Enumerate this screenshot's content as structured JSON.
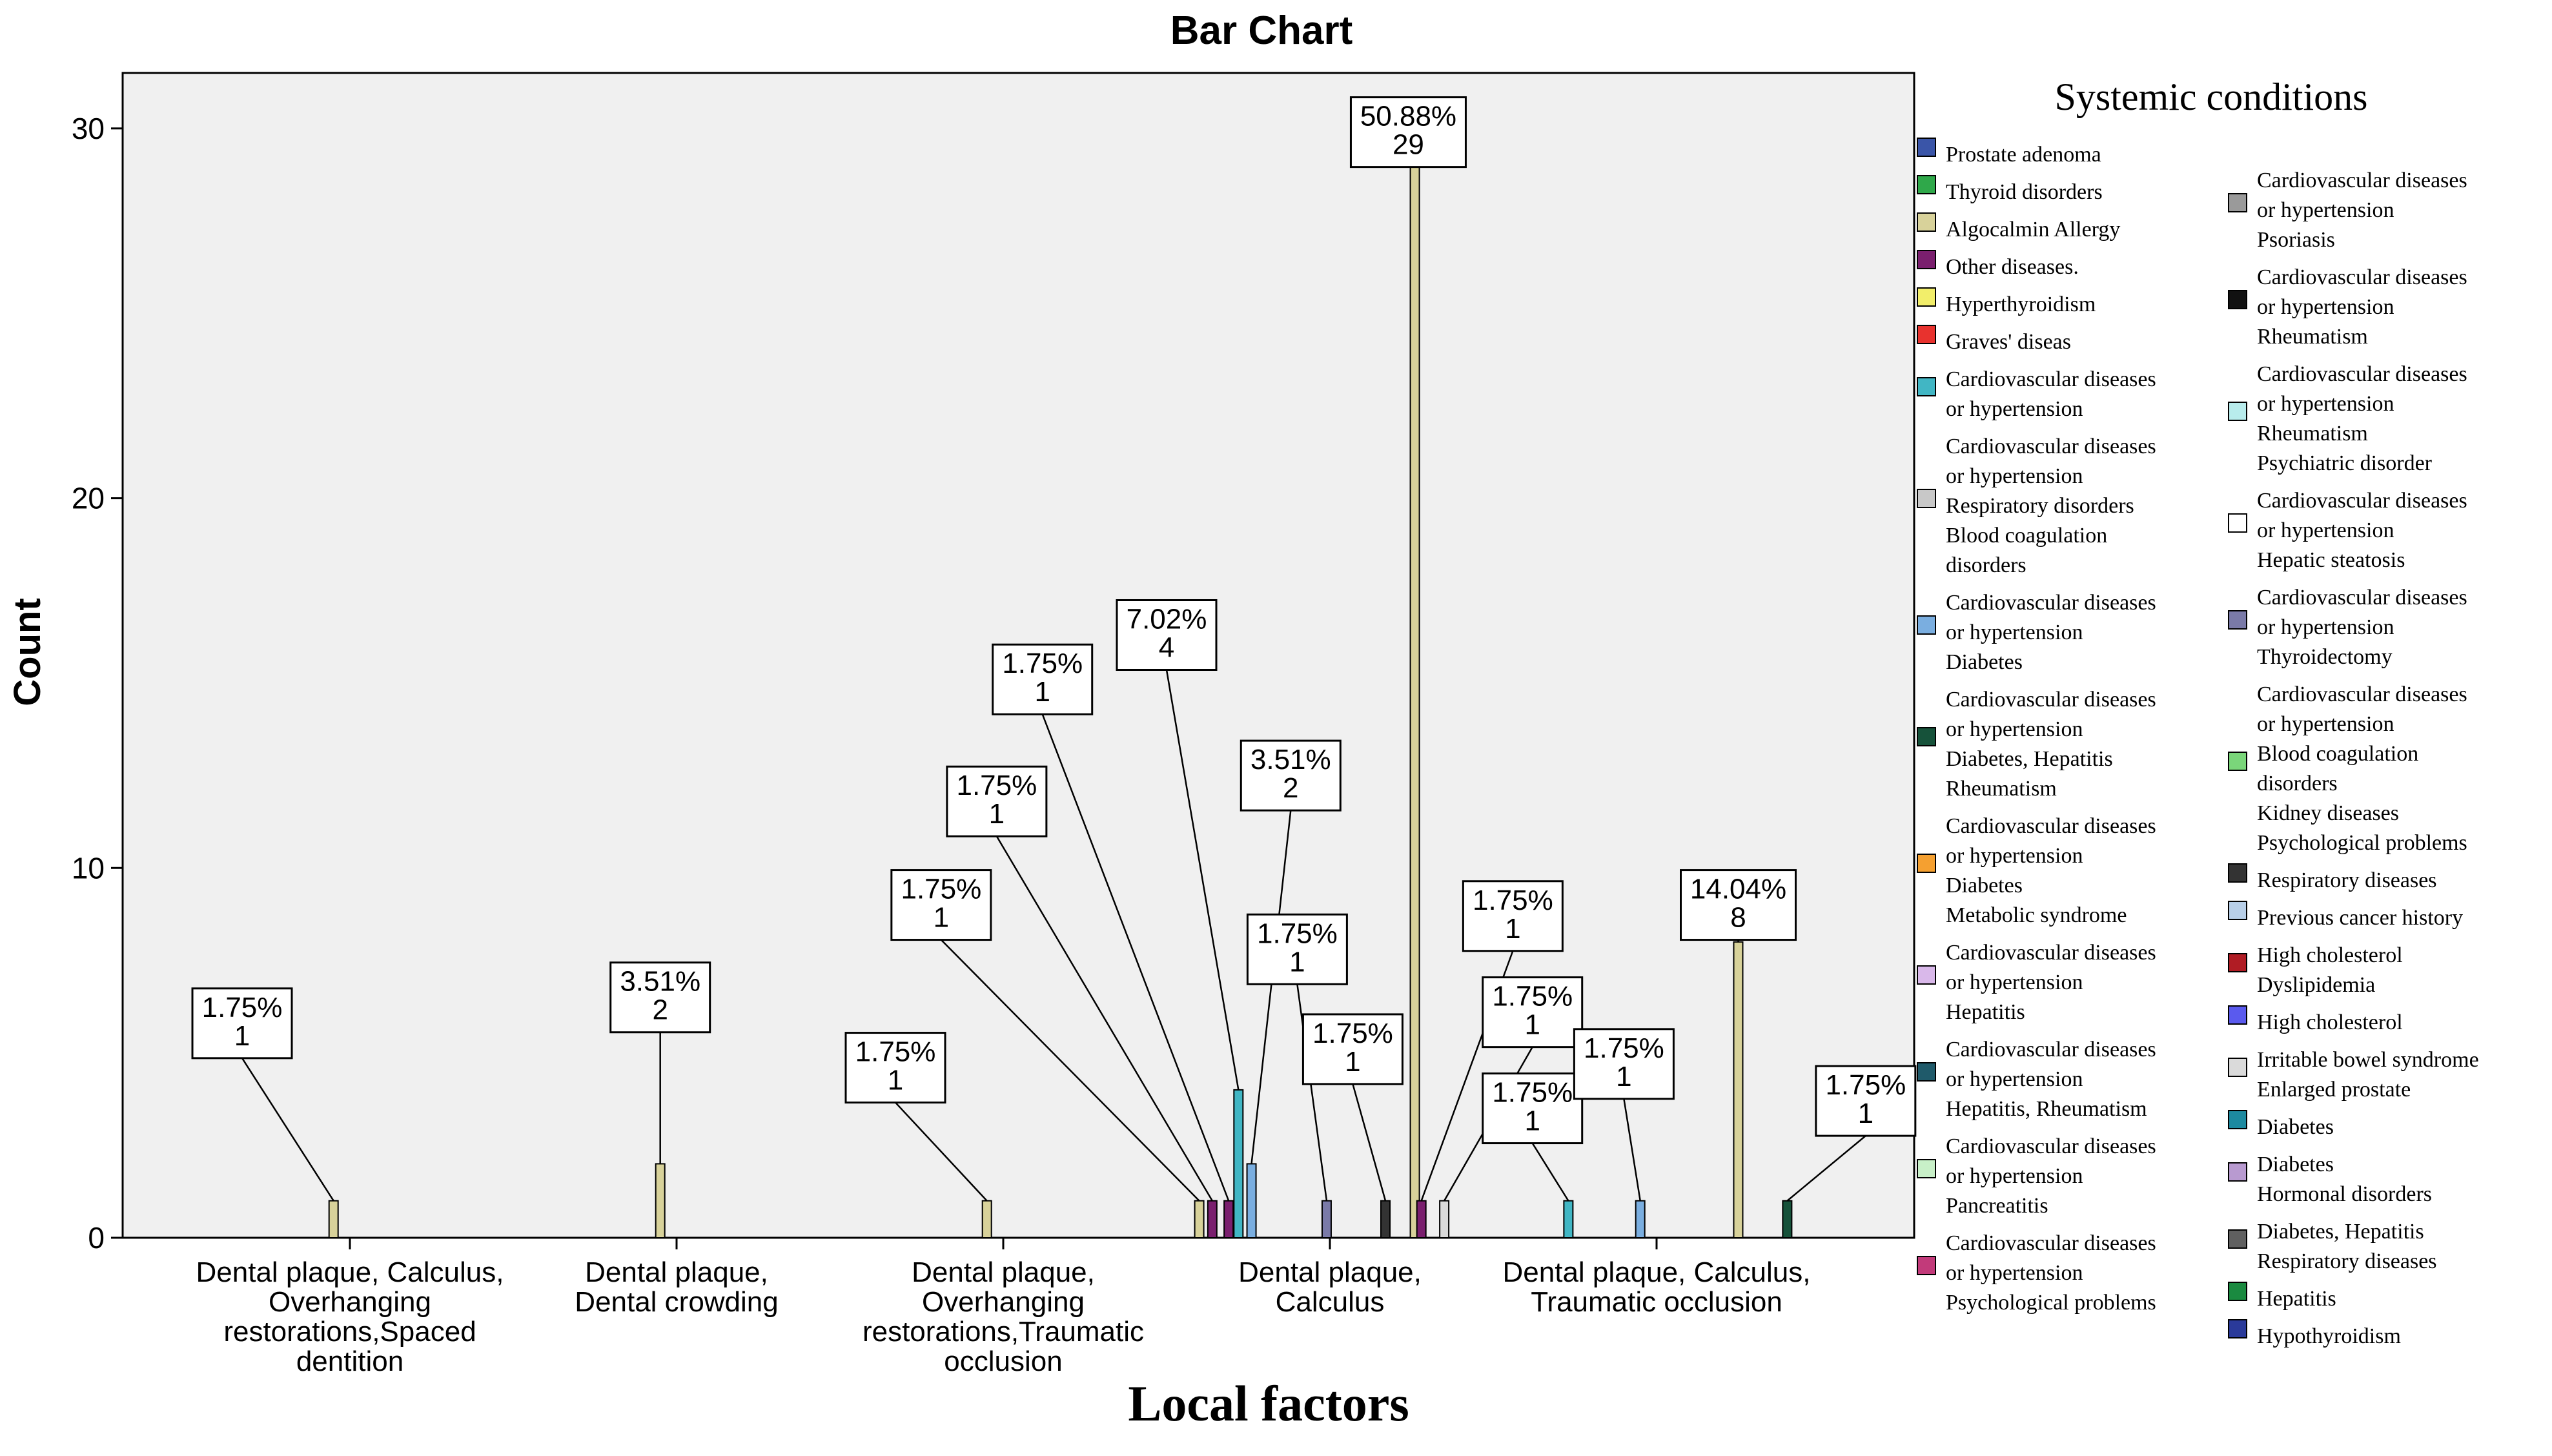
{
  "chart_data": {
    "type": "bar",
    "title": "Bar Chart",
    "xlabel": "Local factors",
    "ylabel": "Count",
    "ylim": [
      0,
      31.5
    ],
    "yticks": [
      0,
      10,
      20,
      30
    ],
    "legend_title": "Systemic conditions",
    "legend_position": "right",
    "categories": [
      {
        "label": [
          "Dental plaque, Calculus,",
          "Overhanging",
          "restorations,Spaced",
          "dentition"
        ]
      },
      {
        "label": [
          "Dental plaque,",
          "Dental crowding"
        ]
      },
      {
        "label": [
          "Dental plaque,",
          "Overhanging",
          "restorations,Traumatic",
          "occlusion"
        ]
      },
      {
        "label": [
          "Dental plaque,",
          "Calculus"
        ]
      },
      {
        "label": [
          "Dental plaque, Calculus,",
          "Traumatic occlusion"
        ]
      }
    ],
    "legend": [
      {
        "label": [
          "Prostate adenoma"
        ],
        "color": "#3a55a8"
      },
      {
        "label": [
          "Thyroid disorders"
        ],
        "color": "#2fa84a"
      },
      {
        "label": [
          "Algocalmin Allergy"
        ],
        "color": "#d8d29a"
      },
      {
        "label": [
          "Other diseases."
        ],
        "color": "#7a1f6e"
      },
      {
        "label": [
          "Hyperthyroidism"
        ],
        "color": "#f2ee6a"
      },
      {
        "label": [
          "Graves' diseas"
        ],
        "color": "#e8322e"
      },
      {
        "label": [
          "Cardiovascular diseases",
          "or hypertension"
        ],
        "color": "#41b6c4"
      },
      {
        "label": [
          "Cardiovascular diseases",
          "or hypertension",
          "Respiratory disorders",
          "Blood coagulation",
          "disorders"
        ],
        "color": "#c8c8c8"
      },
      {
        "label": [
          "Cardiovascular diseases",
          "or hypertension",
          "Diabetes"
        ],
        "color": "#7aaee0"
      },
      {
        "label": [
          "Cardiovascular diseases",
          "or hypertension",
          "Diabetes, Hepatitis",
          "Rheumatism"
        ],
        "color": "#16523a"
      },
      {
        "label": [
          "Cardiovascular diseases",
          "or hypertension",
          "Diabetes",
          "Metabolic syndrome"
        ],
        "color": "#f5a030"
      },
      {
        "label": [
          "Cardiovascular diseases",
          "or hypertension",
          "Hepatitis"
        ],
        "color": "#d9b8ea"
      },
      {
        "label": [
          "Cardiovascular diseases",
          "or hypertension",
          "Hepatitis, Rheumatism"
        ],
        "color": "#1f5a6a"
      },
      {
        "label": [
          "Cardiovascular diseases",
          "or hypertension",
          "Pancreatitis"
        ],
        "color": "#c8f0c8"
      },
      {
        "label": [
          "Cardiovascular diseases",
          "or hypertension",
          "Psychological problems"
        ],
        "color": "#c23a7a"
      },
      {
        "label": [
          "Cardiovascular diseases",
          "or hypertension",
          "Psoriasis"
        ],
        "color": "#9a9a9a"
      },
      {
        "label": [
          "Cardiovascular diseases",
          "or hypertension",
          "Rheumatism"
        ],
        "color": "#111111"
      },
      {
        "label": [
          "Cardiovascular diseases",
          "or hypertension",
          "Rheumatism",
          "Psychiatric disorder"
        ],
        "color": "#b8ecec"
      },
      {
        "label": [
          "Cardiovascular diseases",
          "or hypertension",
          "Hepatic steatosis"
        ],
        "color": "#ffffff"
      },
      {
        "label": [
          "Cardiovascular diseases",
          "or hypertension",
          "Thyroidectomy"
        ],
        "color": "#7a7aa8"
      },
      {
        "label": [
          "Cardiovascular diseases",
          "or hypertension",
          "Blood coagulation",
          "disorders",
          "Kidney diseases",
          "Psychological problems"
        ],
        "color": "#7ad67a"
      },
      {
        "label": [
          "Respiratory diseases"
        ],
        "color": "#333333"
      },
      {
        "label": [
          "Previous cancer history"
        ],
        "color": "#b8cfe8"
      },
      {
        "label": [
          "High cholesterol",
          "Dyslipidemia"
        ],
        "color": "#b01c24"
      },
      {
        "label": [
          "High cholesterol"
        ],
        "color": "#5a5aee"
      },
      {
        "label": [
          "Irritable bowel syndrome",
          "Enlarged prostate"
        ],
        "color": "#dadada"
      },
      {
        "label": [
          "Diabetes"
        ],
        "color": "#1d8aa0"
      },
      {
        "label": [
          "Diabetes",
          "Hormonal disorders"
        ],
        "color": "#b89ad0"
      },
      {
        "label": [
          "Diabetes, Hepatitis",
          "Respiratory diseases"
        ],
        "color": "#606060"
      },
      {
        "label": [
          "Hepatitis"
        ],
        "color": "#1a8a40"
      },
      {
        "label": [
          "Hypothyroidism"
        ],
        "color": "#2a3a9a"
      }
    ],
    "bars": [
      {
        "category": 0,
        "series": 2,
        "x": 0.95,
        "value": 1,
        "pct": "1.75%"
      },
      {
        "category": 1,
        "series": 2,
        "x": 1.95,
        "value": 2,
        "pct": "3.51%"
      },
      {
        "category": 2,
        "series": 2,
        "x": 2.95,
        "value": 1,
        "pct": "1.75%"
      },
      {
        "category": 3,
        "series": 2,
        "x": 3.6,
        "value": 1,
        "pct": "1.75%"
      },
      {
        "category": 3,
        "series": 3,
        "x": 3.64,
        "value": 1,
        "pct": "1.75%"
      },
      {
        "category": 3,
        "series": 3,
        "x": 3.69,
        "value": 1,
        "pct": "1.75%"
      },
      {
        "category": 3,
        "series": 6,
        "x": 3.72,
        "value": 4,
        "pct": "7.02%"
      },
      {
        "category": 3,
        "series": 8,
        "x": 3.76,
        "value": 2,
        "pct": "3.51%"
      },
      {
        "category": 3,
        "series": 19,
        "x": 3.99,
        "value": 1,
        "pct": "1.75%"
      },
      {
        "category": 3,
        "series": 21,
        "x": 4.17,
        "value": 1,
        "pct": "1.75%"
      },
      {
        "category": 3,
        "series": 2,
        "x": 4.26,
        "value": 29,
        "pct": "50.88%"
      },
      {
        "category": 3,
        "series": 3,
        "x": 4.28,
        "value": 1,
        "pct": "1.75%"
      },
      {
        "category": 3,
        "series": 25,
        "x": 4.35,
        "value": 1,
        "pct": "1.75%"
      },
      {
        "category": 4,
        "series": 6,
        "x": 4.73,
        "value": 1,
        "pct": "1.75%"
      },
      {
        "category": 4,
        "series": 8,
        "x": 4.95,
        "value": 1,
        "pct": "1.75%"
      },
      {
        "category": 4,
        "series": 2,
        "x": 5.25,
        "value": 8,
        "pct": "14.04%"
      },
      {
        "category": 4,
        "series": 9,
        "x": 5.4,
        "value": 1,
        "pct": "1.75%"
      }
    ],
    "annotations": [
      {
        "bar": 0,
        "text": [
          "1.75%",
          "1"
        ],
        "at": [
          0.67,
          5.8
        ]
      },
      {
        "bar": 1,
        "text": [
          "3.51%",
          "2"
        ],
        "at": [
          1.95,
          6.5
        ]
      },
      {
        "bar": 2,
        "text": [
          "1.75%",
          "1"
        ],
        "at": [
          2.67,
          4.6
        ]
      },
      {
        "bar": 3,
        "text": [
          "1.75%",
          "1"
        ],
        "at": [
          2.81,
          9.0
        ]
      },
      {
        "bar": 4,
        "text": [
          "1.75%",
          "1"
        ],
        "at": [
          2.98,
          11.8
        ]
      },
      {
        "bar": 5,
        "text": [
          "1.75%",
          "1"
        ],
        "at": [
          3.12,
          15.1
        ]
      },
      {
        "bar": 6,
        "text": [
          "7.02%",
          "4"
        ],
        "at": [
          3.5,
          16.3
        ]
      },
      {
        "bar": 7,
        "text": [
          "3.51%",
          "2"
        ],
        "at": [
          3.88,
          12.5
        ]
      },
      {
        "bar": 8,
        "text": [
          "1.75%",
          "1"
        ],
        "at": [
          3.9,
          7.8
        ]
      },
      {
        "bar": 9,
        "text": [
          "1.75%",
          "1"
        ],
        "at": [
          4.07,
          5.1
        ]
      },
      {
        "bar": 10,
        "text": [
          "50.88%",
          "29"
        ],
        "at": [
          4.24,
          29.9
        ]
      },
      {
        "bar": 11,
        "text": [
          "1.75%",
          "1"
        ],
        "at": [
          4.56,
          8.7
        ]
      },
      {
        "bar": 12,
        "text": [
          "1.75%",
          "1"
        ],
        "at": [
          4.62,
          6.1
        ]
      },
      {
        "bar": 13,
        "text": [
          "1.75%",
          "1"
        ],
        "at": [
          4.62,
          3.5
        ]
      },
      {
        "bar": 14,
        "text": [
          "1.75%",
          "1"
        ],
        "at": [
          4.9,
          4.7
        ]
      },
      {
        "bar": 15,
        "text": [
          "14.04%",
          "8"
        ],
        "at": [
          5.25,
          9.0
        ]
      },
      {
        "bar": 16,
        "text": [
          "1.75%",
          "1"
        ],
        "at": [
          5.64,
          3.7
        ]
      }
    ]
  }
}
